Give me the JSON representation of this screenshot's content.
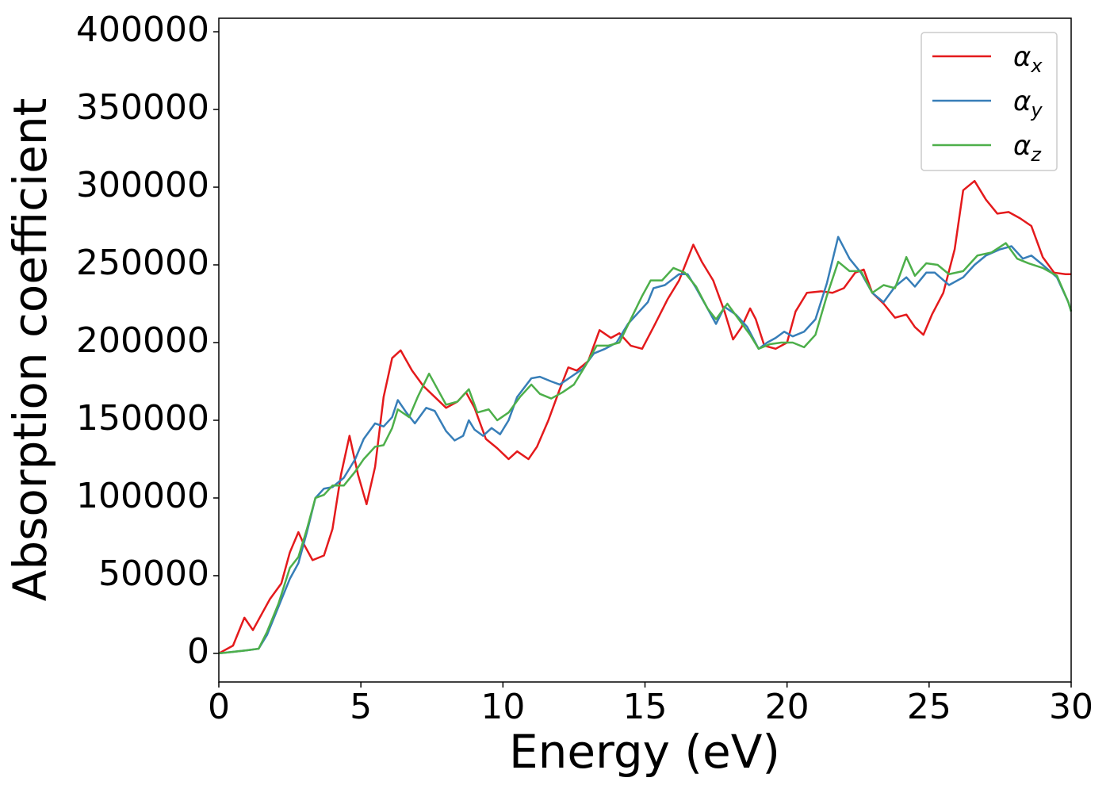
{
  "chart_data": {
    "type": "line",
    "xlabel": "Energy (eV)",
    "ylabel": "Absorption coefficient",
    "xlim": [
      0,
      30
    ],
    "xticks": [
      0,
      5,
      10,
      15,
      20,
      25,
      30
    ],
    "ylim": [
      -18400,
      408700
    ],
    "yticks": [
      0,
      50000,
      100000,
      150000,
      200000,
      250000,
      300000,
      350000,
      400000
    ],
    "legend": "upper right",
    "series": [
      {
        "name": "αx",
        "color": "#e41a1c",
        "x": [
          0,
          0.5,
          0.9,
          1.2,
          1.5,
          1.8,
          2.2,
          2.5,
          2.8,
          3.0,
          3.3,
          3.7,
          4.0,
          4.3,
          4.6,
          4.9,
          5.2,
          5.5,
          5.8,
          6.1,
          6.4,
          6.8,
          7.2,
          7.6,
          8.0,
          8.4,
          8.7,
          9.0,
          9.4,
          9.8,
          10.2,
          10.5,
          10.9,
          11.2,
          11.6,
          12.0,
          12.3,
          12.6,
          13.0,
          13.4,
          13.8,
          14.1,
          14.5,
          14.9,
          15.3,
          15.8,
          16.2,
          16.7,
          17.0,
          17.4,
          17.8,
          18.1,
          18.4,
          18.7,
          18.9,
          19.2,
          19.6,
          20.0,
          20.3,
          20.7,
          21.2,
          21.6,
          22.0,
          22.4,
          22.7,
          23.0,
          23.4,
          23.8,
          24.2,
          24.5,
          24.8,
          25.1,
          25.5,
          25.9,
          26.2,
          26.6,
          27.0,
          27.4,
          27.8,
          28.2,
          28.6,
          29.0,
          29.4,
          29.8,
          30.0
        ],
        "values": [
          0,
          5000,
          23000,
          15000,
          25000,
          35000,
          45000,
          65000,
          78000,
          70000,
          60000,
          63000,
          80000,
          115000,
          140000,
          115000,
          96000,
          120000,
          165000,
          190000,
          195000,
          182000,
          172000,
          165000,
          158000,
          162000,
          168000,
          158000,
          138000,
          132000,
          125000,
          130000,
          125000,
          133000,
          150000,
          170000,
          184000,
          182000,
          188000,
          208000,
          203000,
          206000,
          198000,
          196000,
          210000,
          228000,
          240000,
          263000,
          252000,
          240000,
          220000,
          202000,
          210000,
          222000,
          215000,
          198000,
          196000,
          200000,
          220000,
          232000,
          233000,
          232000,
          235000,
          245000,
          247000,
          232000,
          225000,
          216000,
          218000,
          210000,
          205000,
          218000,
          232000,
          260000,
          298000,
          304000,
          292000,
          283000,
          284000,
          280000,
          275000,
          255000,
          245000,
          244000,
          244000
        ]
      },
      {
        "name": "αy",
        "color": "#377eb8",
        "x": [
          0,
          0.5,
          1.0,
          1.4,
          1.7,
          2.1,
          2.5,
          2.8,
          3.1,
          3.4,
          3.7,
          4.0,
          4.4,
          4.8,
          5.1,
          5.5,
          5.8,
          6.1,
          6.3,
          6.6,
          6.9,
          7.3,
          7.6,
          8.0,
          8.3,
          8.6,
          8.8,
          9.0,
          9.3,
          9.6,
          9.9,
          10.2,
          10.5,
          11.0,
          11.3,
          11.7,
          12.0,
          12.4,
          12.8,
          13.2,
          13.6,
          14.0,
          14.4,
          14.8,
          15.1,
          15.3,
          15.7,
          16.2,
          16.5,
          16.8,
          17.2,
          17.5,
          17.8,
          18.2,
          18.6,
          19.0,
          19.3,
          19.6,
          19.9,
          20.2,
          20.6,
          21.0,
          21.4,
          21.8,
          22.2,
          22.6,
          23.0,
          23.4,
          23.8,
          24.2,
          24.5,
          24.9,
          25.2,
          25.7,
          26.2,
          26.6,
          27.0,
          27.5,
          27.9,
          28.3,
          28.6,
          29.0,
          29.5,
          29.9,
          30.0
        ],
        "values": [
          0,
          1000,
          2000,
          3000,
          12000,
          30000,
          48000,
          58000,
          78000,
          100000,
          106000,
          107000,
          113000,
          125000,
          138000,
          148000,
          146000,
          152000,
          163000,
          155000,
          148000,
          158000,
          156000,
          143000,
          137000,
          140000,
          150000,
          144000,
          140000,
          145000,
          141000,
          150000,
          165000,
          177000,
          178000,
          175000,
          173000,
          178000,
          183000,
          193000,
          196000,
          200000,
          212000,
          220000,
          226000,
          235000,
          237000,
          244000,
          244000,
          235000,
          222000,
          212000,
          223000,
          218000,
          210000,
          196000,
          200000,
          203000,
          207000,
          204000,
          207000,
          215000,
          238000,
          268000,
          254000,
          245000,
          232000,
          226000,
          236000,
          242000,
          236000,
          245000,
          245000,
          237000,
          242000,
          250000,
          256000,
          260000,
          262000,
          254000,
          256000,
          250000,
          242000,
          226000,
          220000
        ]
      },
      {
        "name": "αz",
        "color": "#4daf4a",
        "x": [
          0,
          0.5,
          1.0,
          1.4,
          1.7,
          2.1,
          2.5,
          2.8,
          3.1,
          3.4,
          3.7,
          4.0,
          4.4,
          4.8,
          5.1,
          5.5,
          5.8,
          6.1,
          6.3,
          6.7,
          7.0,
          7.4,
          7.7,
          8.0,
          8.4,
          8.8,
          9.1,
          9.5,
          9.8,
          10.2,
          10.6,
          11.0,
          11.3,
          11.7,
          12.1,
          12.5,
          12.9,
          13.3,
          13.7,
          14.1,
          14.5,
          14.9,
          15.2,
          15.6,
          16.0,
          16.4,
          16.8,
          17.2,
          17.5,
          17.9,
          18.3,
          18.7,
          19.0,
          19.4,
          19.8,
          20.2,
          20.6,
          21.0,
          21.4,
          21.8,
          22.2,
          22.6,
          23.0,
          23.4,
          23.8,
          24.2,
          24.5,
          24.9,
          25.3,
          25.7,
          26.2,
          26.7,
          27.2,
          27.7,
          28.1,
          28.5,
          29.0,
          29.5,
          29.9,
          30.0
        ],
        "values": [
          0,
          1000,
          2000,
          3000,
          14000,
          32000,
          55000,
          62000,
          80000,
          100000,
          102000,
          108000,
          108000,
          117000,
          125000,
          133000,
          134000,
          145000,
          157000,
          152000,
          165000,
          180000,
          170000,
          160000,
          162000,
          170000,
          155000,
          157000,
          150000,
          155000,
          165000,
          173000,
          167000,
          164000,
          168000,
          173000,
          185000,
          198000,
          198000,
          200000,
          215000,
          230000,
          240000,
          240000,
          248000,
          245000,
          236000,
          222000,
          215000,
          225000,
          215000,
          205000,
          196000,
          199000,
          200000,
          200000,
          197000,
          205000,
          230000,
          252000,
          246000,
          246000,
          232000,
          237000,
          235000,
          255000,
          243000,
          251000,
          250000,
          244000,
          246000,
          256000,
          258000,
          264000,
          254000,
          251000,
          248000,
          243000,
          226000,
          220000
        ]
      }
    ]
  }
}
